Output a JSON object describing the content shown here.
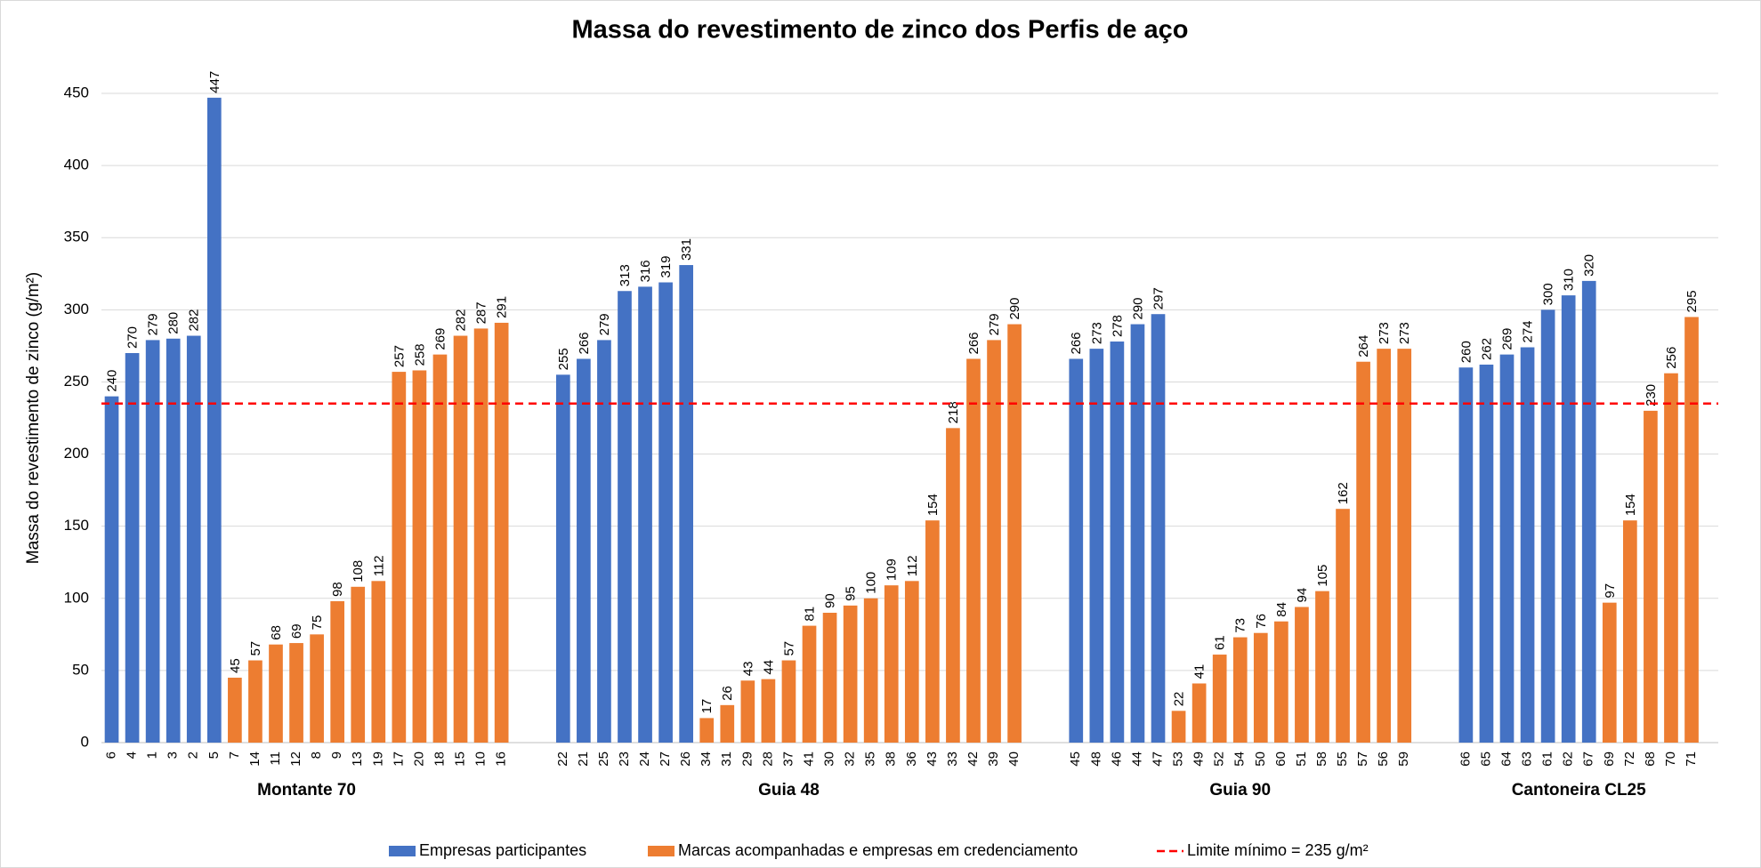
{
  "chart_data": {
    "type": "grouped_bar",
    "title": "Massa do revestimento de zinco dos Perfis de aço",
    "y_label": "Massa do revestimento de zinco (g/m²)",
    "ylim": [
      0,
      450
    ],
    "yticks": [
      0,
      50,
      100,
      150,
      200,
      250,
      300,
      350,
      400,
      450
    ],
    "grid": true,
    "legend": "bottom",
    "series": [
      {
        "name": "Empresas participantes",
        "color": "#4472c4"
      },
      {
        "name": "Marcas acompanhadas e empresas em credenciamento",
        "color": "#ed7d31"
      }
    ],
    "reference_line": {
      "value": 235,
      "label": "Limite mínimo = 235 g/m²",
      "color": "#ff0000"
    },
    "groups": [
      {
        "name": "Montante 70",
        "series": [
          {
            "categories": [
              "6",
              "4",
              "1",
              "3",
              "2",
              "5"
            ],
            "values": [
              240,
              270,
              279,
              280,
              282,
              447
            ]
          },
          {
            "categories": [
              "7",
              "14",
              "11",
              "12",
              "8",
              "9",
              "13",
              "19",
              "17",
              "20",
              "18",
              "15",
              "10",
              "16"
            ],
            "values": [
              45,
              57,
              68,
              69,
              75,
              98,
              108,
              112,
              257,
              258,
              269,
              282,
              287,
              291
            ]
          }
        ]
      },
      {
        "name": "Guia 48",
        "series": [
          {
            "categories": [
              "22",
              "21",
              "25",
              "23",
              "24",
              "27",
              "26"
            ],
            "values": [
              255,
              266,
              279,
              313,
              316,
              319,
              331
            ]
          },
          {
            "categories": [
              "34",
              "31",
              "29",
              "28",
              "37",
              "41",
              "30",
              "32",
              "35",
              "38",
              "36",
              "43",
              "33",
              "42",
              "39",
              "40"
            ],
            "values": [
              17,
              26,
              43,
              44,
              57,
              81,
              90,
              95,
              100,
              109,
              112,
              154,
              218,
              266,
              279,
              290
            ]
          }
        ]
      },
      {
        "name": "Guia 90",
        "series": [
          {
            "categories": [
              "45",
              "48",
              "46",
              "44",
              "47"
            ],
            "values": [
              266,
              273,
              278,
              290,
              297
            ]
          },
          {
            "categories": [
              "53",
              "49",
              "52",
              "54",
              "50",
              "60",
              "51",
              "58",
              "55",
              "57",
              "56",
              "59"
            ],
            "values": [
              22,
              41,
              61,
              73,
              76,
              84,
              94,
              105,
              162,
              264,
              273,
              273
            ]
          }
        ]
      },
      {
        "name": "Cantoneira CL25",
        "series": [
          {
            "categories": [
              "66",
              "65",
              "64",
              "63",
              "61",
              "62",
              "67"
            ],
            "values": [
              260,
              262,
              269,
              274,
              300,
              310,
              320
            ]
          },
          {
            "categories": [
              "69",
              "72",
              "68",
              "70",
              "71"
            ],
            "values": [
              97,
              154,
              230,
              256,
              295
            ]
          }
        ]
      }
    ]
  }
}
